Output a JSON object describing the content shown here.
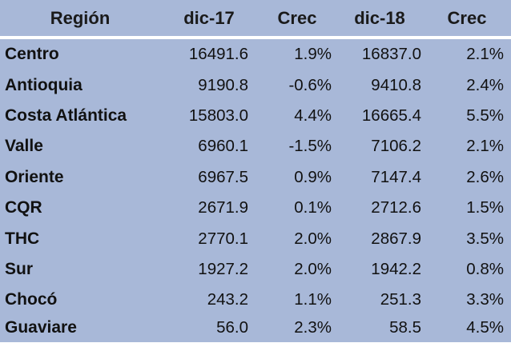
{
  "header": {
    "region": "Región",
    "dic17": "dic-17",
    "crec17": "Crec",
    "dic18": "dic-18",
    "crec18": "Crec"
  },
  "rows": [
    {
      "region": "Centro",
      "dic17": "16491.6",
      "crec17": "1.9%",
      "dic18": "16837.0",
      "crec18": "2.1%"
    },
    {
      "region": "Antioquia",
      "dic17": "9190.8",
      "crec17": "-0.6%",
      "dic18": "9410.8",
      "crec18": "2.4%"
    },
    {
      "region": "Costa Atlántica",
      "dic17": "15803.0",
      "crec17": "4.4%",
      "dic18": "16665.4",
      "crec18": "5.5%"
    },
    {
      "region": "Valle",
      "dic17": "6960.1",
      "crec17": "-1.5%",
      "dic18": "7106.2",
      "crec18": "2.1%"
    },
    {
      "region": "Oriente",
      "dic17": "6967.5",
      "crec17": "0.9%",
      "dic18": "7147.4",
      "crec18": "2.6%"
    },
    {
      "region": "CQR",
      "dic17": "2671.9",
      "crec17": "0.1%",
      "dic18": "2712.6",
      "crec18": "1.5%"
    },
    {
      "region": "THC",
      "dic17": "2770.1",
      "crec17": "2.0%",
      "dic18": "2867.9",
      "crec18": "3.5%"
    },
    {
      "region": "Sur",
      "dic17": "1927.2",
      "crec17": "2.0%",
      "dic18": "1942.2",
      "crec18": "0.8%"
    },
    {
      "region": "Chocó",
      "dic17": "243.2",
      "crec17": "1.1%",
      "dic18": "251.3",
      "crec18": "3.3%"
    },
    {
      "region": "Guaviare",
      "dic17": "56.0",
      "crec17": "2.3%",
      "dic18": "58.5",
      "crec18": "4.5%"
    }
  ]
}
